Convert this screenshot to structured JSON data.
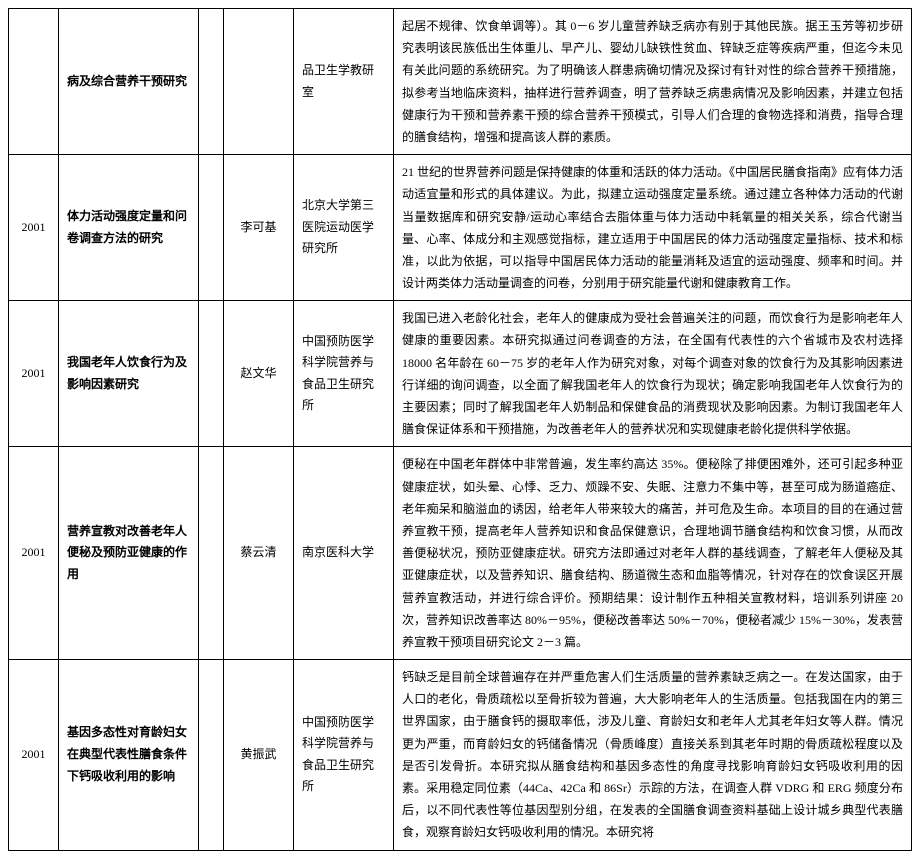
{
  "rows": [
    {
      "year": "",
      "title": "病及综合营养干预研究",
      "author": "",
      "institution": "品卫生学教研室",
      "description": "起居不规律、饮食单调等）。其 0－6 岁儿童营养缺乏病亦有别于其他民族。据王玉芳等初步研究表明该民族低出生体重儿、早产儿、婴幼儿缺铁性贫血、锌缺乏症等疾病严重，但迄今未见有关此问题的系统研究。为了明确该人群患病确切情况及探讨有针对性的综合营养干预措施，拟参考当地临床资料，抽样进行营养调查，明了营养缺乏病患病情况及影响因素，并建立包括健康行为干预和营养素干预的综合营养干预模式，引导人们合理的食物选择和消费，指导合理的膳食结构，增强和提高该人群的素质。"
    },
    {
      "year": "2001",
      "title": "体力活动强度定量和问卷调查方法的研究",
      "author": "李可基",
      "institution": "北京大学第三医院运动医学研究所",
      "description": "21 世纪的世界营养问题是保持健康的体重和活跃的体力活动。《中国居民膳食指南》应有体力活动适宜量和形式的具体建议。为此，拟建立运动强度定量系统。通过建立各种体力活动的代谢当量数据库和研究安静/运动心率结合去脂体重与体力活动中耗氧量的相关关系，综合代谢当量、心率、体成分和主观感觉指标，建立适用于中国居民的体力活动强度定量指标、技术和标准，以此为依据，可以指导中国居民体力活动的能量消耗及适宜的运动强度、频率和时间。并设计两类体力活动量调查的问卷，分别用于研究能量代谢和健康教育工作。"
    },
    {
      "year": "2001",
      "title": "我国老年人饮食行为及影响因素研究",
      "author": "赵文华",
      "institution": "中国预防医学科学院营养与食品卫生研究所",
      "description": "我国已进入老龄化社会，老年人的健康成为受社会普遍关注的问题，而饮食行为是影响老年人健康的重要因素。本研究拟通过问卷调查的方法，在全国有代表性的六个省城市及农村选择 18000 名年龄在 60－75 岁的老年人作为研究对象，对每个调查对象的饮食行为及其影响因素进行详细的询问调查，以全面了解我国老年人的饮食行为现状；确定影响我国老年人饮食行为的主要因素；同时了解我国老年人奶制品和保健食品的消费现状及影响因素。为制订我国老年人膳食保证体系和干预措施，为改善老年人的营养状况和实现健康老龄化提供科学依据。"
    },
    {
      "year": "2001",
      "title": "营养宣教对改善老年人便秘及预防亚健康的作用",
      "author": "蔡云清",
      "institution": "南京医科大学",
      "description": "便秘在中国老年群体中非常普遍，发生率约高达 35%。便秘除了排便困难外，还可引起多种亚健康症状，如头晕、心悸、乏力、烦躁不安、失眠、注意力不集中等，甚至可成为肠道癌症、老年痴呆和脑溢血的诱因，给老年人带来较大的痛苦，并可危及生命。本项目的目的在通过营养宣教干预，提高老年人营养知识和食品保健意识，合理地调节膳食结构和饮食习惯，从而改善便秘状况，预防亚健康症状。研究方法即通过对老年人群的基线调查，了解老年人便秘及其亚健康症状，以及营养知识、膳食结构、肠道微生态和血脂等情况，针对存在的饮食误区开展营养宣教活动，并进行综合评价。预期结果：设计制作五种相关宣教材料，培训系列讲座 20 次，营养知识改善率达 80%－95%，便秘改善率达 50%－70%，便秘者减少 15%－30%，发表营养宣教干预项目研究论文 2－3 篇。"
    },
    {
      "year": "2001",
      "title": "基因多态性对育龄妇女在典型代表性膳食条件下钙吸收利用的影响",
      "author": "黄振武",
      "institution": "中国预防医学科学院营养与食品卫生研究所",
      "description": "钙缺乏是目前全球普遍存在并严重危害人们生活质量的营养素缺乏病之一。在发达国家，由于人口的老化，骨质疏松以至骨折较为普遍，大大影响老年人的生活质量。包括我国在内的第三世界国家，由于膳食钙的摄取率低，涉及儿童、育龄妇女和老年人尤其老年妇女等人群。情况更为严重，而育龄妇女的钙储备情况（骨质峰度）直接关系到其老年时期的骨质疏松程度以及是否引发骨折。本研究拟从膳食结构和基因多态性的角度寻找影响育龄妇女钙吸收利用的因素。采用稳定同位素（44Ca、42Ca 和 86Sr）示踪的方法，在调查人群 VDRG 和 ERG 频度分布后，以不同代表性等位基因型别分组，在发表的全国膳食调查资料基础上设计城乡典型代表膳食，观察育龄妇女钙吸收利用的情况。本研究将"
    }
  ]
}
